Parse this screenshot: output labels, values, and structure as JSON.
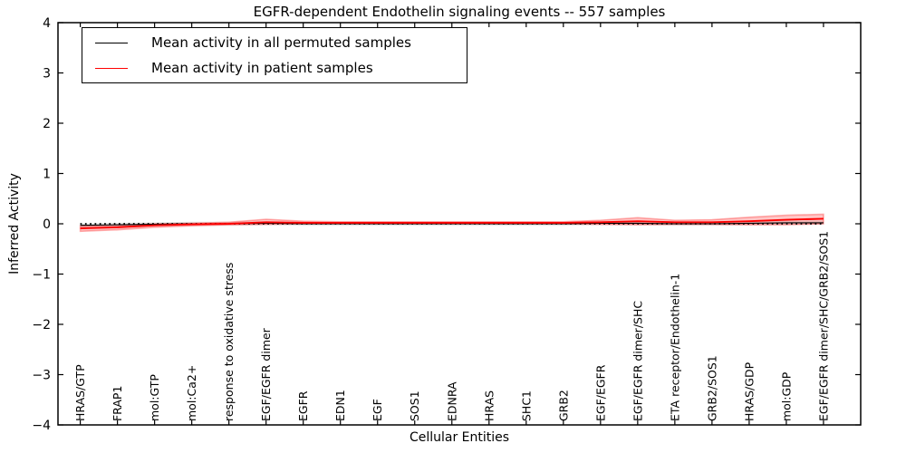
{
  "chart_data": {
    "type": "line",
    "title": "EGFR-dependent Endothelin signaling events -- 557 samples",
    "xlabel": "Cellular Entities",
    "ylabel": "Inferred Activity",
    "ylim": [
      -4,
      4
    ],
    "yticks": [
      "4",
      "3",
      "2",
      "1",
      "0",
      "−1",
      "−2",
      "−3",
      "−4"
    ],
    "ytick_values": [
      4,
      3,
      2,
      1,
      0,
      -1,
      -2,
      -3,
      -4
    ],
    "grid": false,
    "x_tick_label_rotation_deg": 90,
    "legend": {
      "position": "upper-left",
      "entries": [
        {
          "label": "Mean activity in all permuted samples",
          "color": "#000000"
        },
        {
          "label": "Mean activity in patient samples",
          "color": "#ff0000"
        }
      ]
    },
    "categories": [
      "HRAS/GTP",
      "FRAP1",
      "mol:GTP",
      "mol:Ca2+",
      "response to oxidative stress",
      "EGF/EGFR dimer",
      "EGFR",
      "EDN1",
      "EGF",
      "SOS1",
      "EDNRA",
      "HRAS",
      "SHC1",
      "GRB2",
      "EGF/EGFR",
      "EGF/EGFR dimer/SHC",
      "ETA receptor/Endothelin-1",
      "GRB2/SOS1",
      "HRAS/GDP",
      "mol:GDP",
      "EGF/EGFR dimer/SHC/GRB2/SOS1"
    ],
    "series": [
      {
        "name": "Mean activity in all permuted samples",
        "color": "#000000",
        "band_color": "#999999",
        "values": [
          -0.03,
          -0.02,
          -0.01,
          0.0,
          0.0,
          0.01,
          0.0,
          0.0,
          0.0,
          0.0,
          0.0,
          0.0,
          0.0,
          0.0,
          0.01,
          0.01,
          0.0,
          0.0,
          0.01,
          0.02,
          0.02
        ],
        "band_upper": [
          0.01,
          0.02,
          0.03,
          0.04,
          0.04,
          0.05,
          0.04,
          0.04,
          0.04,
          0.04,
          0.04,
          0.04,
          0.04,
          0.04,
          0.05,
          0.05,
          0.04,
          0.04,
          0.05,
          0.06,
          0.06
        ],
        "band_lower": [
          -0.07,
          -0.06,
          -0.05,
          -0.04,
          -0.04,
          -0.03,
          -0.04,
          -0.04,
          -0.04,
          -0.04,
          -0.04,
          -0.04,
          -0.04,
          -0.04,
          -0.03,
          -0.03,
          -0.04,
          -0.04,
          -0.03,
          -0.02,
          -0.02
        ]
      },
      {
        "name": "Mean activity in patient samples",
        "color": "#ff0000",
        "band_color": "#ff0000",
        "values": [
          -0.09,
          -0.07,
          -0.03,
          -0.01,
          0.0,
          0.03,
          0.02,
          0.02,
          0.02,
          0.02,
          0.02,
          0.02,
          0.02,
          0.02,
          0.03,
          0.05,
          0.03,
          0.03,
          0.05,
          0.08,
          0.1
        ],
        "band_upper": [
          -0.04,
          -0.03,
          0.0,
          0.01,
          0.03,
          0.09,
          0.05,
          0.04,
          0.04,
          0.04,
          0.04,
          0.04,
          0.04,
          0.04,
          0.07,
          0.12,
          0.07,
          0.08,
          0.13,
          0.17,
          0.19
        ],
        "band_lower": [
          -0.15,
          -0.12,
          -0.07,
          -0.04,
          -0.02,
          -0.01,
          0.0,
          0.0,
          0.0,
          0.0,
          0.0,
          0.0,
          0.0,
          0.0,
          -0.01,
          -0.02,
          -0.01,
          -0.01,
          -0.02,
          -0.02,
          0.0
        ]
      }
    ],
    "zero_reference_line": {
      "value": 0,
      "style": "dotted",
      "color": "#000000"
    }
  }
}
